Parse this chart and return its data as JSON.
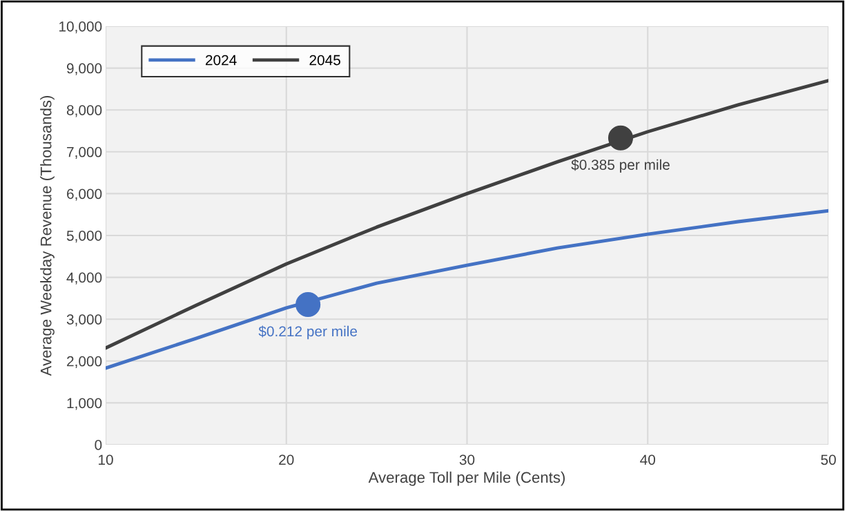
{
  "chart_data": {
    "type": "line",
    "xlabel": "Average Toll per Mile (Cents)",
    "ylabel": "Average Weekday Revenue (Thousands)",
    "x": [
      10,
      15,
      20,
      25,
      30,
      35,
      40,
      45,
      50
    ],
    "series": [
      {
        "name": "2024",
        "color": "#4472c4",
        "values": [
          1830,
          2540,
          3270,
          3860,
          4290,
          4700,
          5030,
          5330,
          5590
        ]
      },
      {
        "name": "2045",
        "color": "#404040",
        "values": [
          2310,
          3330,
          4320,
          5200,
          6000,
          6760,
          7480,
          8120,
          8700
        ]
      },
      {
        "type": "scatter",
        "marker": "circle",
        "color": "#4472c4",
        "x": [
          21.2
        ],
        "values": [
          3350
        ]
      },
      {
        "type": "scatter",
        "marker": "circle",
        "color": "#404040",
        "x": [
          38.5
        ],
        "values": [
          7330
        ]
      }
    ],
    "annotations": [
      {
        "text": "$0.212 per mile",
        "x": 21.2,
        "y": 3350
      },
      {
        "text": "$0.385 per mile",
        "x": 38.5,
        "y": 7330
      }
    ],
    "xlim": [
      10,
      50
    ],
    "xticks": [
      10,
      20,
      30,
      40,
      50
    ],
    "ylim": [
      0,
      10000
    ],
    "yticks": [
      {
        "value": 0,
        "label": "0"
      },
      {
        "value": 1000,
        "label": "1,000"
      },
      {
        "value": 2000,
        "label": "2,000"
      },
      {
        "value": 3000,
        "label": "3,000"
      },
      {
        "value": 4000,
        "label": "4,000"
      },
      {
        "value": 5000,
        "label": "5,000"
      },
      {
        "value": 6000,
        "label": "6,000"
      },
      {
        "value": 7000,
        "label": "7,000"
      },
      {
        "value": 8000,
        "label": "8,000"
      },
      {
        "value": 9000,
        "label": "9,000"
      },
      {
        "value": 10000,
        "label": "10,000"
      }
    ],
    "grid": true,
    "legend": "top left",
    "line_style": "solid"
  }
}
